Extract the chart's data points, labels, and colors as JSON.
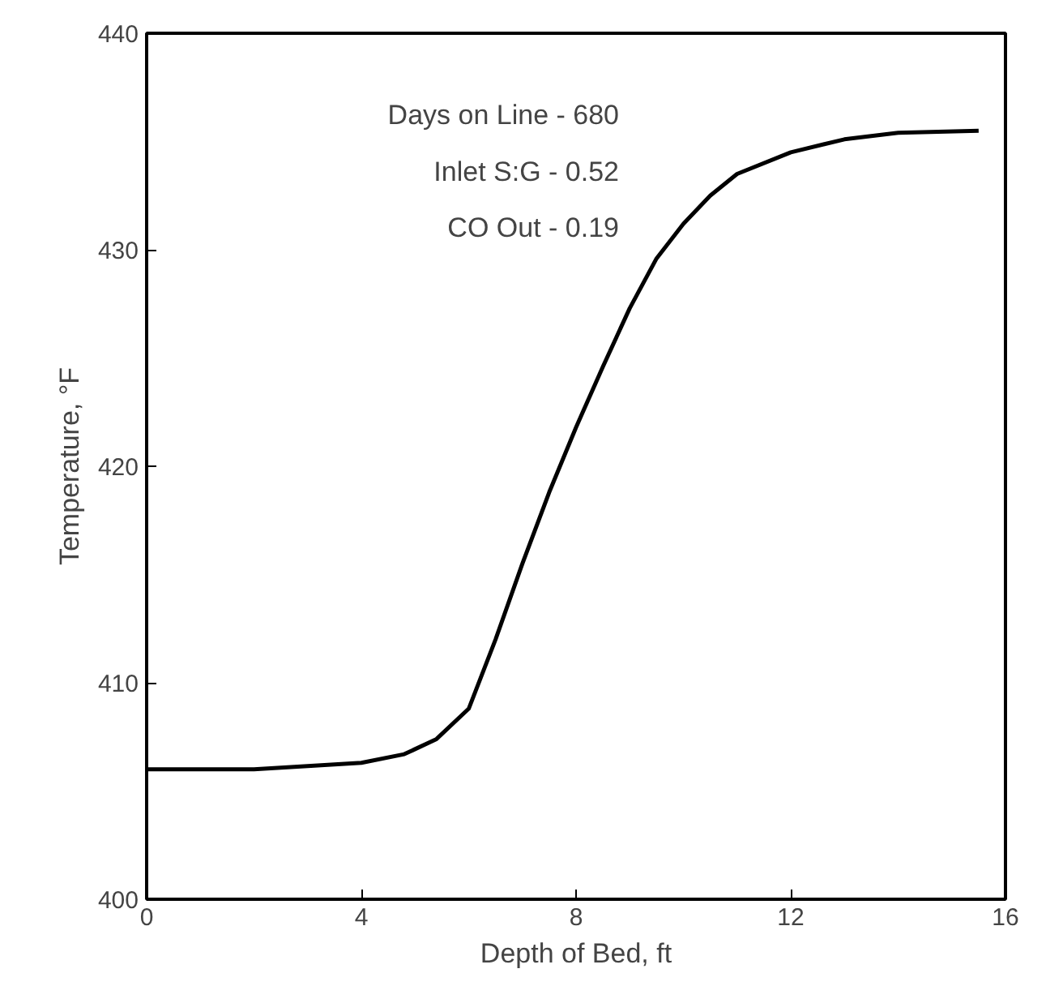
{
  "chart_data": {
    "type": "line",
    "xlabel": "Depth of Bed, ft",
    "ylabel": "Temperature, °F",
    "x": [
      0,
      2,
      4,
      4.8,
      5.4,
      6,
      6.5,
      7,
      7.5,
      8,
      8.5,
      9,
      9.5,
      10,
      10.5,
      11,
      12,
      13,
      14,
      15.5
    ],
    "series": [
      {
        "color": "#000000",
        "values": [
          406,
          406,
          406.3,
          406.7,
          407.4,
          408.8,
          412,
          415.5,
          418.8,
          421.8,
          424.6,
          427.3,
          429.6,
          431.2,
          432.5,
          433.5,
          434.5,
          435.1,
          435.4,
          435.5
        ]
      }
    ],
    "xlim": [
      0,
      16
    ],
    "ylim": [
      400,
      440
    ],
    "xticks": [
      0,
      4,
      8,
      12,
      16
    ],
    "yticks": [
      400,
      410,
      420,
      430,
      440
    ],
    "grid": false,
    "marker": "none",
    "line_style": "solid",
    "annotations": [
      "Days on Line - 680",
      "Inlet S:G - 0.52",
      "CO Out - 0.19"
    ]
  }
}
